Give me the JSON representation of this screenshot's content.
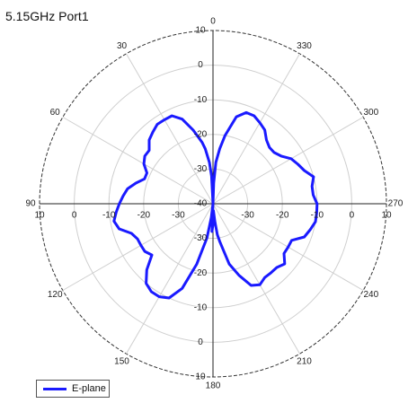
{
  "chart_data": {
    "type": "polar",
    "title": "5.15GHz Port1",
    "radial_axis": {
      "range": [
        -40,
        10
      ],
      "ticks": [
        10,
        0,
        -10,
        -20,
        -30,
        -40
      ],
      "grid": true
    },
    "angular_axis": {
      "direction": "counterclockwise",
      "zero_at": "top",
      "tick_labels": [
        "0",
        "30",
        "60",
        "90",
        "120",
        "150",
        "180",
        "210",
        "240",
        "270",
        "300",
        "330"
      ]
    },
    "legend": {
      "placement": "bottom-left",
      "entries": [
        "E-plane"
      ]
    },
    "series": [
      {
        "name": "E-plane",
        "color": "#1a1aff",
        "angles": [
          0,
          3,
          5,
          8,
          10,
          15,
          20,
          25,
          30,
          35,
          40,
          45,
          50,
          55,
          60,
          65,
          70,
          75,
          80,
          85,
          90,
          95,
          100,
          105,
          110,
          115,
          120,
          125,
          130,
          135,
          140,
          145,
          150,
          155,
          160,
          165,
          170,
          173,
          176,
          178,
          180,
          182,
          184,
          186,
          188,
          190,
          195,
          200,
          205,
          210,
          215,
          220,
          225,
          230,
          235,
          240,
          245,
          250,
          255,
          260,
          265,
          270,
          275,
          280,
          285,
          290,
          295,
          300,
          305,
          310,
          315,
          320,
          325,
          330,
          335,
          340,
          345,
          350,
          353,
          356,
          358,
          360
        ],
        "values": [
          -40,
          -32,
          -28,
          -24,
          -22,
          -18,
          -14,
          -12,
          -12,
          -12,
          -13,
          -14,
          -16,
          -16,
          -17,
          -19,
          -19,
          -17,
          -15,
          -14,
          -13,
          -12,
          -11,
          -12,
          -15,
          -16,
          -16,
          -16,
          -17,
          -13,
          -10,
          -9,
          -9,
          -10,
          -14,
          -22,
          -30,
          -36,
          -40,
          -32,
          -34,
          -36,
          -38,
          -35,
          -31,
          -29,
          -22,
          -18,
          -14,
          -13,
          -14,
          -14,
          -14,
          -13,
          -15,
          -15,
          -15,
          -12,
          -11,
          -10,
          -10,
          -10,
          -11,
          -11,
          -10,
          -12,
          -13,
          -14,
          -16,
          -17,
          -17,
          -16,
          -14,
          -13,
          -12,
          -12,
          -14,
          -20,
          -24,
          -28,
          -34,
          -40
        ]
      }
    ]
  }
}
